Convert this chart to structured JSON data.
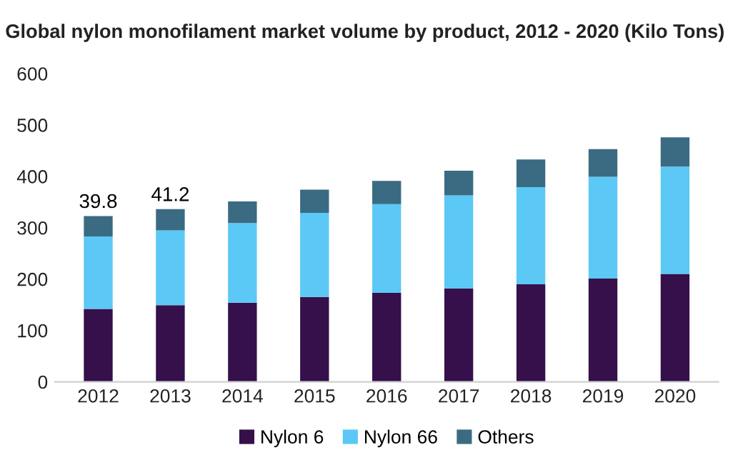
{
  "chart_data": {
    "type": "bar",
    "title": "Global nylon monofilament market volume by product, 2012 - 2020 (Kilo Tons)",
    "stacked": true,
    "categories": [
      "2012",
      "2013",
      "2014",
      "2015",
      "2016",
      "2017",
      "2018",
      "2019",
      "2020"
    ],
    "series": [
      {
        "name": "Nylon 6",
        "color": "#35104a",
        "values": [
          142,
          149,
          154,
          165,
          173,
          182,
          190,
          201,
          210
        ]
      },
      {
        "name": "Nylon 66",
        "color": "#5bc8f5",
        "values": [
          141,
          146,
          155,
          164,
          173,
          181,
          189,
          198,
          209
        ]
      },
      {
        "name": "Others",
        "color": "#3b6b82",
        "values": [
          39.8,
          41.2,
          42,
          45,
          45,
          48,
          54,
          54,
          57
        ],
        "value_labels": [
          "39.8",
          "41.2",
          null,
          null,
          null,
          null,
          null,
          null,
          null
        ]
      }
    ],
    "ylim": [
      0,
      600
    ],
    "yticks": [
      0,
      100,
      200,
      300,
      400,
      500,
      600
    ],
    "grid": false,
    "legend": "bottom"
  }
}
